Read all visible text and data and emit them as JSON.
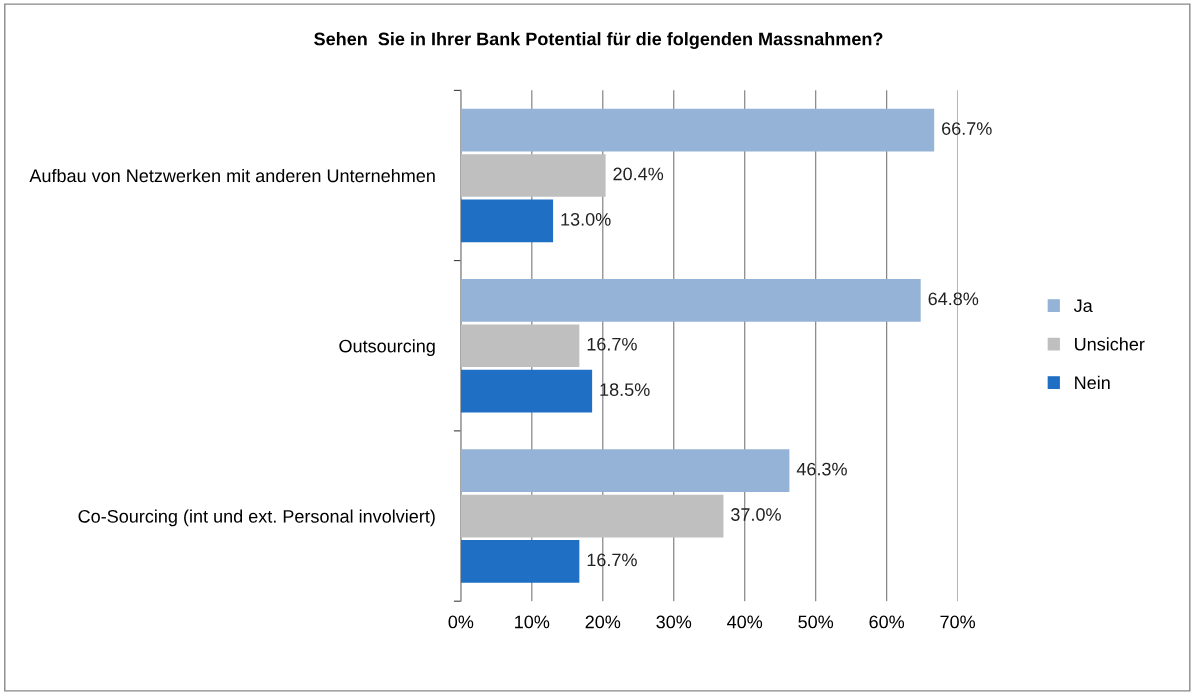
{
  "chart_data": {
    "type": "bar",
    "orientation": "horizontal",
    "title": "Sehen  Sie in Ihrer Bank Potential für die folgenden Massnahmen?",
    "categories": [
      "Aufbau von Netzwerken mit anderen Unternehmen",
      "Outsourcing",
      "Co-Sourcing (int und ext. Personal involviert)"
    ],
    "series": [
      {
        "name": "Ja",
        "color": "#95b3d7",
        "values": [
          66.7,
          64.8,
          46.3
        ],
        "value_labels": [
          "66.7%",
          "64.8%",
          "46.3%"
        ]
      },
      {
        "name": "Unsicher",
        "color": "#bfbfbf",
        "values": [
          20.4,
          16.7,
          37.0
        ],
        "value_labels": [
          "20.4%",
          "16.7%",
          "37.0%"
        ]
      },
      {
        "name": "Nein",
        "color": "#1f6fc5",
        "values": [
          13.0,
          18.5,
          16.7
        ],
        "value_labels": [
          "13.0%",
          "18.5%",
          "16.7%"
        ]
      }
    ],
    "xlim": [
      0,
      70
    ],
    "xticks": [
      {
        "value": 0,
        "label": "0%"
      },
      {
        "value": 10,
        "label": "10%"
      },
      {
        "value": 20,
        "label": "20%"
      },
      {
        "value": 30,
        "label": "30%"
      },
      {
        "value": 40,
        "label": "40%"
      },
      {
        "value": 50,
        "label": "50%"
      },
      {
        "value": 60,
        "label": "60%"
      },
      {
        "value": 70,
        "label": "70%"
      }
    ],
    "grid": "x",
    "legend": "right"
  }
}
